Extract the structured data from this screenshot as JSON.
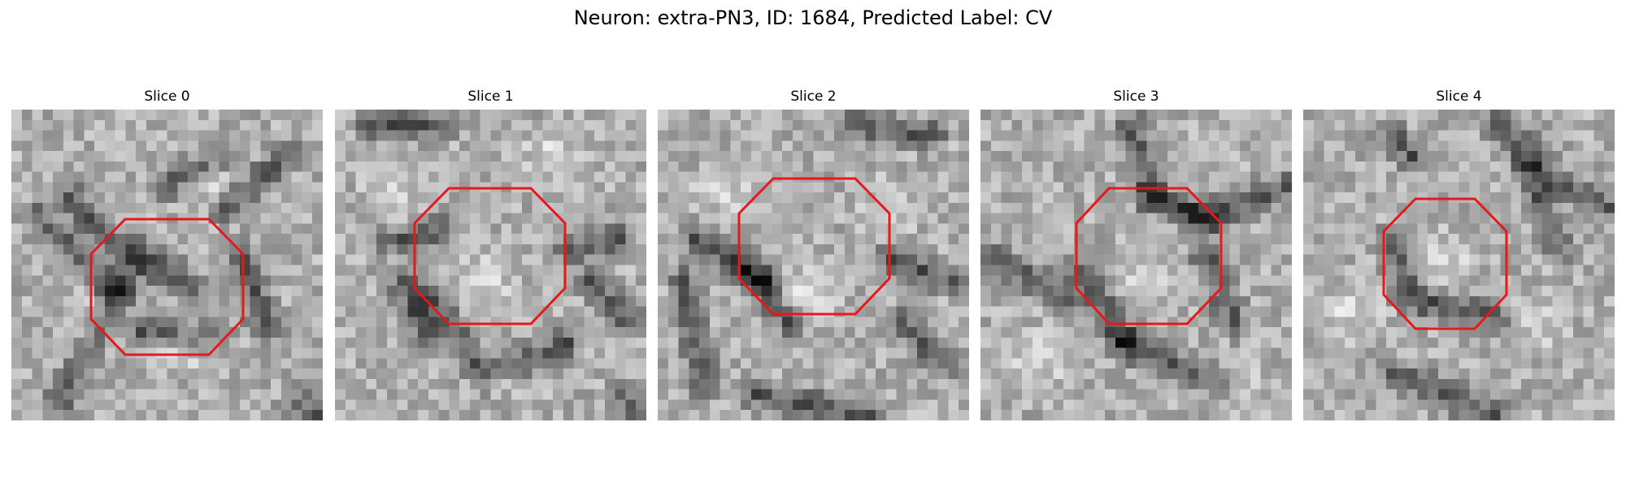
{
  "figure": {
    "title": "Neuron: extra-PN3, ID: 1684, Predicted Label: CV"
  },
  "slices": [
    {
      "title": "Slice 0",
      "roi_shape": "octagon",
      "roi_color": "#e6191a"
    },
    {
      "title": "Slice 1",
      "roi_shape": "octagon",
      "roi_color": "#e6191a"
    },
    {
      "title": "Slice 2",
      "roi_shape": "octagon",
      "roi_color": "#e6191a"
    },
    {
      "title": "Slice 3",
      "roi_shape": "octagon",
      "roi_color": "#e6191a"
    },
    {
      "title": "Slice 4",
      "roi_shape": "octagon",
      "roi_color": "#e6191a"
    }
  ],
  "colormap": "gray"
}
